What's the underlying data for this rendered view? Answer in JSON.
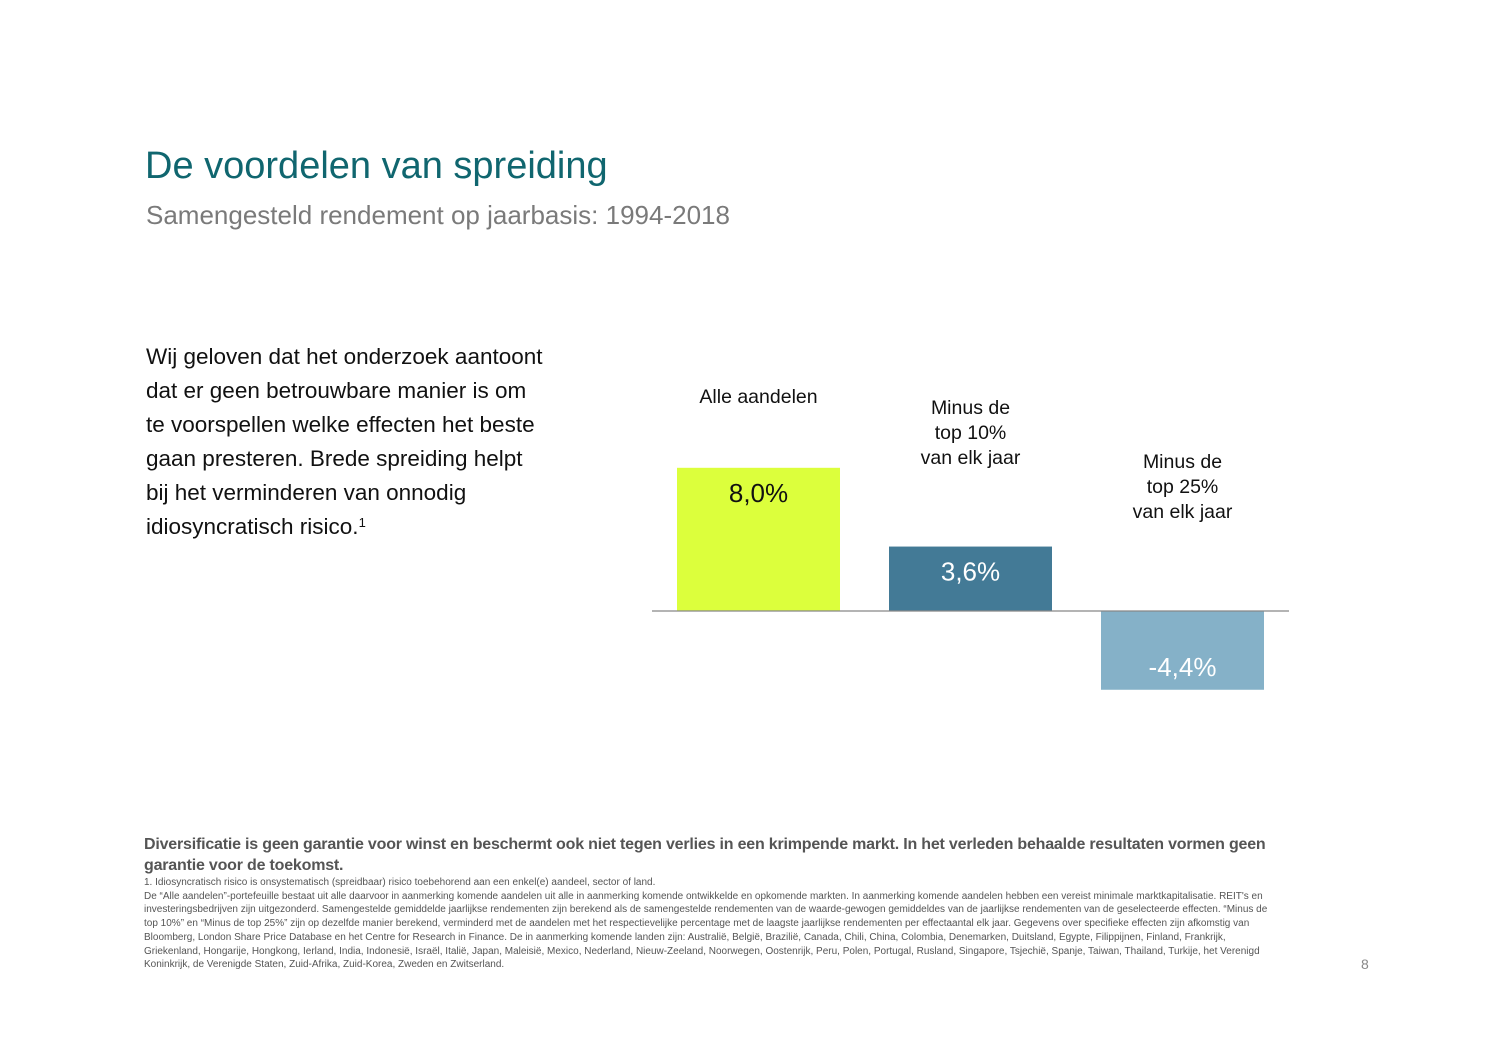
{
  "header": {
    "title": "De voordelen van spreiding",
    "subtitle": "Samengesteld rendement op jaarbasis: 1994-2018"
  },
  "body": {
    "text": "Wij geloven dat het onderzoek aantoont dat er geen betrouwbare manier is om te voorspellen welke effecten het beste gaan presteren. Brede spreiding helpt bij het verminderen van onnodig idiosyncratisch risico.",
    "footnote_ref": "1"
  },
  "chart_data": {
    "type": "bar",
    "categories": [
      [
        "Alle aandelen"
      ],
      [
        "Minus de",
        "top 10%",
        "van elk jaar"
      ],
      [
        "Minus de",
        "top 25%",
        "van elk jaar"
      ]
    ],
    "values": [
      8.0,
      3.6,
      -4.4
    ],
    "data_labels": [
      "8,0%",
      "3,6%",
      "-4,4%"
    ],
    "colors": [
      "#dcff3c",
      "#437a96",
      "#85b1c8"
    ],
    "label_colors": [
      "#111111",
      "#ffffff",
      "#ffffff"
    ],
    "axis_color": "#888888",
    "grid": false,
    "unit": "%"
  },
  "footer": {
    "disclaimer": "Diversificatie is geen garantie voor winst en beschermt ook niet tegen verlies in een krimpende markt. In het verleden behaalde resultaten vormen geen garantie voor de toekomst.",
    "footnote_lines": [
      "1. Idiosyncratisch risico is onsystematisch (spreidbaar) risico toebehorend aan een enkel(e) aandeel, sector of land.",
      "De “Alle aandelen”-portefeuille bestaat uit alle daarvoor in aanmerking komende aandelen uit alle in aanmerking komende ontwikkelde en opkomende markten. In aanmerking komende aandelen hebben een vereist minimale marktkapitalisatie. REIT's en",
      "investeringsbedrijven zijn uitgezonderd. Samengestelde gemiddelde jaarlijkse rendementen zijn berekend als de samengestelde rendementen van de waarde-gewogen gemiddeldes van de jaarlijkse rendementen van de geselecteerde effecten. “Minus de",
      "top 10%” en “Minus de top 25%” zijn op dezelfde manier berekend, verminderd met de aandelen met het respectievelijke percentage met de laagste jaarlijkse rendementen per effectaantal elk jaar. Gegevens over specifieke effecten zijn afkomstig van",
      "Bloomberg, London Share Price Database en het Centre for Research in Finance. De in aanmerking komende landen zijn: Australië, België, Brazilië, Canada, Chili, China, Colombia, Denemarken, Duitsland, Egypte, Filippijnen, Finland, Frankrijk,",
      "Griekenland, Hongarije, Hongkong, Ierland, India, Indonesië, Israël, Italië, Japan, Maleisië, Mexico, Nederland, Nieuw-Zeeland, Noorwegen, Oostenrijk, Peru, Polen, Portugal, Rusland, Singapore, Tsjechië, Spanje, Taiwan, Thailand, Turkije, het Verenigd",
      "Koninkrijk, de Verenigde Staten, Zuid-Afrika, Zuid-Korea, Zweden en Zwitserland."
    ],
    "page_number": "8"
  }
}
